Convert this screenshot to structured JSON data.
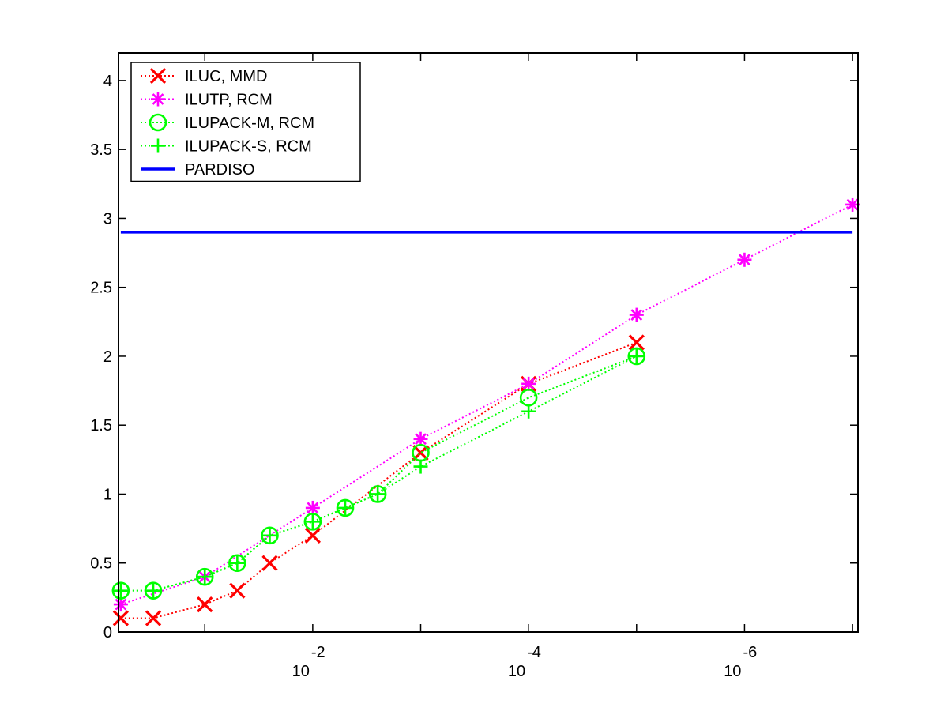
{
  "chart_data": {
    "type": "line",
    "title": "",
    "xlabel": "",
    "ylabel": "",
    "x_scale": "log-reversed",
    "xlim": [
      0.63,
      8.9e-08
    ],
    "ylim": [
      0,
      4.2
    ],
    "grid": false,
    "legend_position": "top-left",
    "x_tick_labels": [
      {
        "base": "10",
        "exp": "-2",
        "x": 0.01
      },
      {
        "base": "10",
        "exp": "-4",
        "x": 0.0001
      },
      {
        "base": "10",
        "exp": "-6",
        "x": 1e-06
      }
    ],
    "y_ticks": [
      0,
      0.5,
      1,
      1.5,
      2,
      2.5,
      3,
      3.5,
      4
    ],
    "y_tick_labels": [
      "0",
      "0.5",
      "1",
      "1.5",
      "2",
      "2.5",
      "3",
      "3.5",
      "4"
    ],
    "series": [
      {
        "name": "ILUC, MMD",
        "color": "#ff0000",
        "marker": "x",
        "line": "dotted",
        "x": [
          0.6,
          0.3,
          0.1,
          0.05,
          0.025,
          0.01,
          0.001,
          0.0001,
          1e-05
        ],
        "values": [
          0.1,
          0.1,
          0.2,
          0.3,
          0.5,
          0.7,
          1.3,
          1.8,
          2.1
        ]
      },
      {
        "name": "ILUTP, RCM",
        "color": "#ff00ff",
        "marker": "asterisk",
        "line": "dotted",
        "x": [
          0.6,
          0.1,
          0.01,
          0.001,
          0.0001,
          1e-05,
          1e-06,
          1e-07
        ],
        "values": [
          0.2,
          0.4,
          0.9,
          1.4,
          1.8,
          2.3,
          2.7,
          3.1
        ]
      },
      {
        "name": "ILUPACK-M, RCM",
        "color": "#00ff00",
        "marker": "circle",
        "line": "dotted",
        "x": [
          0.6,
          0.3,
          0.1,
          0.05,
          0.025,
          0.01,
          0.005,
          0.0025,
          0.001,
          0.0001,
          1e-05
        ],
        "values": [
          0.3,
          0.3,
          0.4,
          0.5,
          0.7,
          0.8,
          0.9,
          1.0,
          1.3,
          1.7,
          2.0
        ]
      },
      {
        "name": "ILUPACK-S, RCM",
        "color": "#00ff00",
        "marker": "plus",
        "line": "dotted",
        "x": [
          0.6,
          0.3,
          0.1,
          0.05,
          0.025,
          0.01,
          0.005,
          0.0025,
          0.001,
          0.0001,
          1e-05
        ],
        "values": [
          0.3,
          0.3,
          0.4,
          0.5,
          0.7,
          0.8,
          0.9,
          1.0,
          1.2,
          1.6,
          2.0
        ]
      },
      {
        "name": "PARDISO",
        "color": "#0000ff",
        "marker": "none",
        "line": "solid",
        "x": [
          0.6,
          1e-07
        ],
        "values": [
          2.9,
          2.9
        ]
      }
    ]
  }
}
